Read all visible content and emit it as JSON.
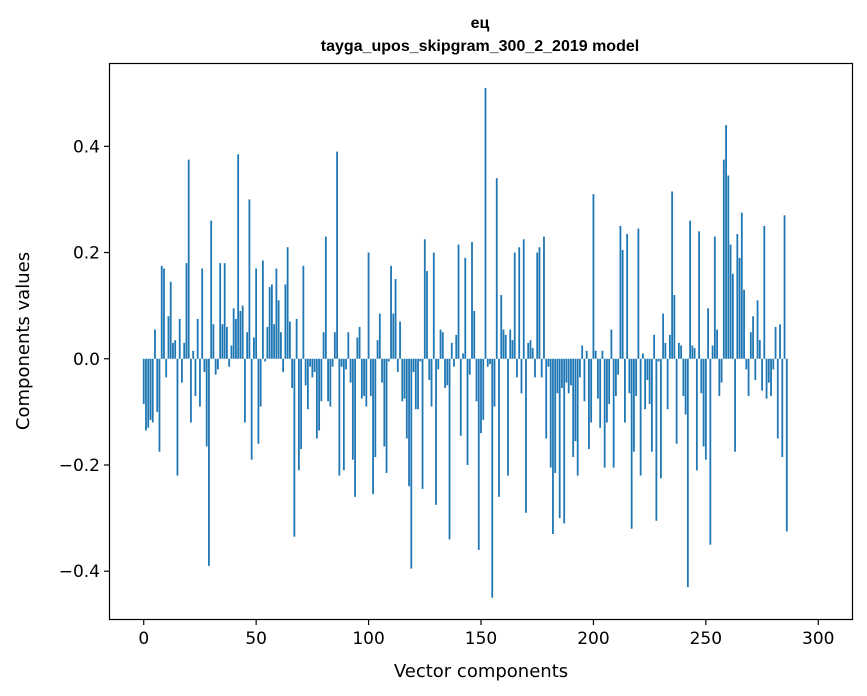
{
  "chart_data": {
    "type": "bar",
    "title": "ец",
    "subtitle": "tayga_upos_skipgram_300_2_2019 model",
    "xlabel": "Vector components",
    "ylabel": "Components values",
    "xlim": [
      -15,
      315
    ],
    "ylim": [
      -0.49,
      0.555
    ],
    "xticks": [
      0,
      50,
      100,
      150,
      200,
      250,
      300
    ],
    "yticks": [
      -0.4,
      -0.2,
      0.0,
      0.2,
      0.4
    ],
    "ytick_labels": [
      "−0.4",
      "−0.2",
      "0.0",
      "0.2",
      "0.4"
    ],
    "bar_color": "#1f77b4",
    "grid": false,
    "values": [
      -0.085,
      -0.135,
      -0.13,
      -0.115,
      -0.12,
      0.055,
      -0.1,
      -0.175,
      0.175,
      0.17,
      -0.035,
      0.08,
      0.145,
      0.03,
      0.035,
      -0.22,
      0.075,
      -0.045,
      0.03,
      0.18,
      0.375,
      -0.12,
      0.015,
      -0.07,
      0.075,
      -0.09,
      0.17,
      -0.025,
      -0.165,
      -0.39,
      0.26,
      0.065,
      -0.03,
      -0.02,
      0.18,
      0.065,
      0.18,
      0.06,
      -0.015,
      0.025,
      0.095,
      0.075,
      0.385,
      0.09,
      0.1,
      -0.12,
      0.05,
      0.3,
      -0.19,
      0.04,
      0.17,
      -0.16,
      -0.09,
      0.185,
      -0.005,
      0.06,
      0.135,
      0.14,
      0.065,
      0.17,
      0.11,
      0.05,
      -0.025,
      0.14,
      0.21,
      0.07,
      -0.055,
      -0.335,
      0.075,
      -0.21,
      -0.17,
      0.175,
      -0.05,
      -0.095,
      -0.015,
      -0.035,
      -0.025,
      -0.15,
      -0.135,
      -0.08,
      0.05,
      0.23,
      -0.08,
      -0.09,
      -0.015,
      0.05,
      0.39,
      -0.22,
      -0.015,
      -0.21,
      -0.02,
      0.05,
      -0.045,
      -0.19,
      -0.26,
      0.04,
      0.06,
      -0.075,
      -0.07,
      -0.09,
      0.2,
      -0.07,
      -0.255,
      -0.185,
      0.035,
      0.085,
      -0.045,
      -0.165,
      -0.215,
      -0.005,
      0.175,
      0.085,
      0.15,
      -0.025,
      0.07,
      -0.08,
      -0.075,
      -0.15,
      -0.24,
      -0.395,
      -0.025,
      -0.095,
      -0.095,
      -0.005,
      -0.245,
      0.225,
      0.165,
      -0.04,
      -0.09,
      0.2,
      -0.275,
      -0.02,
      0.055,
      0.05,
      -0.055,
      -0.05,
      -0.34,
      0.03,
      -0.015,
      0.045,
      0.215,
      -0.145,
      0.01,
      0.19,
      -0.2,
      -0.03,
      0.22,
      0.09,
      -0.08,
      -0.36,
      -0.14,
      -0.115,
      0.51,
      -0.015,
      -0.01,
      -0.45,
      -0.09,
      0.34,
      -0.26,
      0.12,
      0.055,
      0.045,
      -0.22,
      0.055,
      0.035,
      0.2,
      -0.035,
      0.21,
      -0.065,
      0.225,
      -0.29,
      0.03,
      0.035,
      0.02,
      -0.035,
      0.2,
      0.21,
      -0.035,
      0.23,
      -0.15,
      -0.015,
      -0.205,
      -0.33,
      -0.215,
      -0.065,
      -0.3,
      -0.055,
      -0.31,
      -0.045,
      -0.065,
      -0.05,
      -0.185,
      -0.155,
      -0.22,
      -0.035,
      0.025,
      -0.08,
      0.015,
      -0.17,
      -0.12,
      0.31,
      0.015,
      -0.075,
      -0.13,
      0.015,
      -0.205,
      -0.12,
      -0.085,
      0.055,
      -0.205,
      -0.07,
      -0.03,
      0.25,
      0.205,
      -0.12,
      0.235,
      -0.065,
      -0.32,
      -0.175,
      -0.07,
      0.245,
      -0.22,
      0.01,
      -0.095,
      -0.04,
      -0.085,
      -0.175,
      0.045,
      -0.305,
      -0.005,
      -0.225,
      0.085,
      0.03,
      -0.095,
      0.045,
      0.315,
      0.12,
      -0.16,
      0.03,
      0.025,
      -0.07,
      -0.105,
      -0.43,
      0.26,
      0.025,
      0.02,
      -0.21,
      0.24,
      -0.065,
      -0.165,
      -0.19,
      0.095,
      -0.35,
      0.025,
      0.23,
      0.055,
      -0.07,
      -0.045,
      0.375,
      0.44,
      0.345,
      0.215,
      0.16,
      -0.175,
      0.235,
      0.19,
      0.275,
      0.13,
      -0.02,
      -0.07,
      0.05,
      0.08,
      -0.04,
      0.11,
      0.035,
      -0.06,
      0.25,
      -0.075,
      -0.045,
      -0.07,
      -0.02,
      0.06,
      -0.15,
      0.065,
      -0.185,
      0.27,
      -0.325
    ]
  }
}
